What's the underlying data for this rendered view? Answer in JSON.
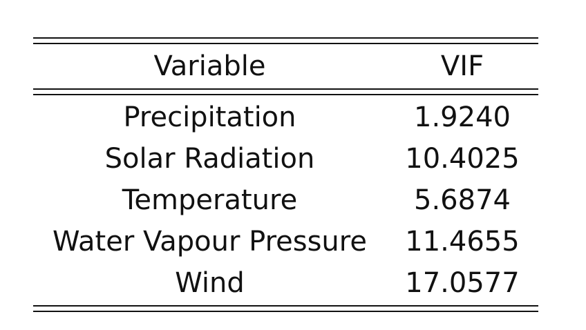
{
  "table": {
    "header": {
      "variable": "Variable",
      "vif": "VIF"
    },
    "rows": [
      {
        "variable": "Precipitation",
        "vif": "1.9240"
      },
      {
        "variable": "Solar Radiation",
        "vif": "10.4025"
      },
      {
        "variable": "Temperature",
        "vif": "5.6874"
      },
      {
        "variable": "Water Vapour Pressure",
        "vif": "11.4655"
      },
      {
        "variable": "Wind",
        "vif": "17.0577"
      }
    ]
  }
}
